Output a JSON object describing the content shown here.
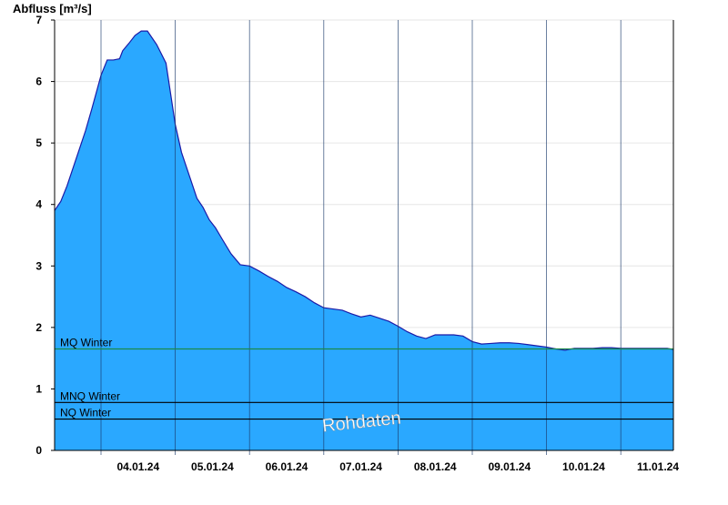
{
  "chart_data": {
    "type": "area",
    "ylabel": "Abfluss [m³/s]",
    "ylim": [
      0,
      7
    ],
    "yticks": [
      0,
      1,
      2,
      3,
      4,
      5,
      6,
      7
    ],
    "x_unit": "days",
    "xlim": [
      "2024-01-03T09:00",
      "2024-01-11T17:00"
    ],
    "xticks": [
      "04.01.24",
      "05.01.24",
      "06.01.24",
      "07.01.24",
      "08.01.24",
      "09.01.24",
      "10.01.24",
      "11.01.24"
    ],
    "grid": true,
    "fill_color": "#2aa8ff",
    "line_color": "#1a1aa8",
    "series": [
      {
        "x": [
          "2024-01-03T09:00",
          "2024-01-03T11:00",
          "2024-01-03T13:00",
          "2024-01-03T15:00",
          "2024-01-03T17:00",
          "2024-01-03T19:00",
          "2024-01-03T21:00",
          "2024-01-04T00:00",
          "2024-01-04T02:00",
          "2024-01-04T04:00",
          "2024-01-04T06:00",
          "2024-01-04T07:00",
          "2024-01-04T09:00",
          "2024-01-04T11:00",
          "2024-01-04T13:00",
          "2024-01-04T15:00",
          "2024-01-04T18:00",
          "2024-01-04T21:00",
          "2024-01-05T00:00",
          "2024-01-05T02:00",
          "2024-01-05T04:00",
          "2024-01-05T06:00",
          "2024-01-05T07:00",
          "2024-01-05T09:00",
          "2024-01-05T11:00",
          "2024-01-05T13:00",
          "2024-01-05T15:00",
          "2024-01-05T18:00",
          "2024-01-05T21:00",
          "2024-01-06T00:00",
          "2024-01-06T03:00",
          "2024-01-06T06:00",
          "2024-01-06T09:00",
          "2024-01-06T12:00",
          "2024-01-06T15:00",
          "2024-01-06T18:00",
          "2024-01-06T21:00",
          "2024-01-07T00:00",
          "2024-01-07T03:00",
          "2024-01-07T06:00",
          "2024-01-07T09:00",
          "2024-01-07T12:00",
          "2024-01-07T15:00",
          "2024-01-07T18:00",
          "2024-01-07T21:00",
          "2024-01-08T00:00",
          "2024-01-08T03:00",
          "2024-01-08T06:00",
          "2024-01-08T09:00",
          "2024-01-08T12:00",
          "2024-01-08T15:00",
          "2024-01-08T18:00",
          "2024-01-08T21:00",
          "2024-01-09T00:00",
          "2024-01-09T03:00",
          "2024-01-09T06:00",
          "2024-01-09T09:00",
          "2024-01-09T12:00",
          "2024-01-09T15:00",
          "2024-01-09T18:00",
          "2024-01-09T21:00",
          "2024-01-10T00:00",
          "2024-01-10T03:00",
          "2024-01-10T06:00",
          "2024-01-10T09:00",
          "2024-01-10T12:00",
          "2024-01-10T15:00",
          "2024-01-10T18:00",
          "2024-01-10T21:00",
          "2024-01-11T00:00",
          "2024-01-11T03:00",
          "2024-01-11T06:00",
          "2024-01-11T09:00",
          "2024-01-11T12:00",
          "2024-01-11T15:00",
          "2024-01-11T17:00"
        ],
        "values": [
          3.9,
          4.05,
          4.3,
          4.6,
          4.9,
          5.2,
          5.55,
          6.1,
          6.35,
          6.35,
          6.37,
          6.5,
          6.62,
          6.75,
          6.82,
          6.82,
          6.6,
          6.3,
          5.3,
          4.85,
          4.55,
          4.25,
          4.1,
          3.95,
          3.75,
          3.62,
          3.45,
          3.2,
          3.02,
          3.0,
          2.92,
          2.83,
          2.75,
          2.65,
          2.58,
          2.5,
          2.4,
          2.32,
          2.3,
          2.28,
          2.22,
          2.17,
          2.2,
          2.15,
          2.1,
          2.02,
          1.93,
          1.86,
          1.82,
          1.88,
          1.88,
          1.88,
          1.86,
          1.77,
          1.73,
          1.74,
          1.75,
          1.75,
          1.74,
          1.72,
          1.7,
          1.68,
          1.65,
          1.63,
          1.66,
          1.66,
          1.66,
          1.67,
          1.67,
          1.66,
          1.66,
          1.66,
          1.66,
          1.66,
          1.66,
          1.64
        ]
      }
    ],
    "reference_lines": [
      {
        "label": "MQ Winter",
        "value": 1.65,
        "color": "#1a8a4a"
      },
      {
        "label": "MNQ Winter",
        "value": 0.78,
        "color": "#000000"
      },
      {
        "label": "NQ Winter",
        "value": 0.51,
        "color": "#000000"
      }
    ],
    "annotations": [
      {
        "text": "Rohdaten"
      }
    ]
  }
}
